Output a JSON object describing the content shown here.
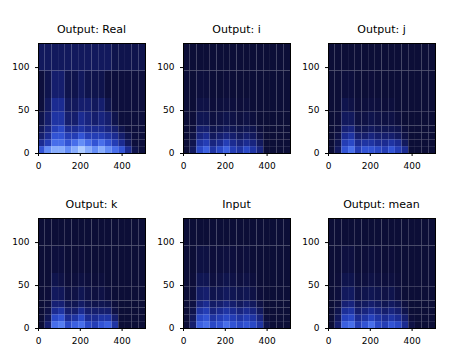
{
  "chart_data": [
    {
      "type": "heatmap",
      "title": "Output: Real",
      "xlim": [
        0,
        512
      ],
      "ylim": [
        0,
        128
      ],
      "xticks": [
        0,
        200,
        400
      ],
      "yticks": [
        0,
        50,
        100
      ],
      "zlim": [
        0,
        1
      ],
      "x_edges": [
        0,
        32,
        64,
        96,
        128,
        160,
        192,
        224,
        256,
        288,
        320,
        352,
        384,
        416,
        448,
        480,
        512
      ],
      "y_edges": [
        0,
        8,
        16,
        24,
        32,
        48,
        64,
        96,
        128
      ],
      "z": [
        [
          0.5,
          0.7,
          0.8,
          0.8,
          0.7,
          0.8,
          0.9,
          0.8,
          0.7,
          0.8,
          0.7,
          0.6,
          0.5,
          0.3,
          0.1,
          0.05
        ],
        [
          0.3,
          0.4,
          0.6,
          0.6,
          0.5,
          0.6,
          0.7,
          0.6,
          0.5,
          0.6,
          0.5,
          0.4,
          0.3,
          0.15,
          0.05,
          0.05
        ],
        [
          0.2,
          0.3,
          0.5,
          0.5,
          0.4,
          0.4,
          0.5,
          0.4,
          0.4,
          0.4,
          0.35,
          0.3,
          0.2,
          0.1,
          0.05,
          0.05
        ],
        [
          0.15,
          0.25,
          0.4,
          0.45,
          0.3,
          0.3,
          0.35,
          0.3,
          0.3,
          0.3,
          0.25,
          0.2,
          0.1,
          0.05,
          0.05,
          0.05
        ],
        [
          0.1,
          0.2,
          0.35,
          0.35,
          0.2,
          0.2,
          0.3,
          0.25,
          0.2,
          0.25,
          0.2,
          0.1,
          0.05,
          0.05,
          0.05,
          0.05
        ],
        [
          0.05,
          0.15,
          0.3,
          0.3,
          0.15,
          0.15,
          0.2,
          0.2,
          0.15,
          0.2,
          0.1,
          0.05,
          0.05,
          0.05,
          0.05,
          0.05
        ],
        [
          0.05,
          0.1,
          0.2,
          0.2,
          0.1,
          0.1,
          0.15,
          0.1,
          0.1,
          0.1,
          0.05,
          0.05,
          0.05,
          0.05,
          0.05,
          0.05
        ],
        [
          0.15,
          0.15,
          0.15,
          0.15,
          0.15,
          0.15,
          0.15,
          0.15,
          0.15,
          0.15,
          0.15,
          0.1,
          0.1,
          0.1,
          0.1,
          0.1
        ]
      ]
    },
    {
      "type": "heatmap",
      "title": "Output: i",
      "xlim": [
        0,
        512
      ],
      "ylim": [
        0,
        128
      ],
      "xticks": [
        0,
        200,
        400
      ],
      "yticks": [
        0,
        50,
        100
      ],
      "zlim": [
        0,
        1
      ],
      "x_edges": [
        0,
        32,
        64,
        96,
        128,
        160,
        192,
        224,
        256,
        288,
        320,
        352,
        384,
        416,
        448,
        480,
        512
      ],
      "y_edges": [
        0,
        8,
        16,
        24,
        32,
        48,
        64,
        96,
        128
      ],
      "z": [
        [
          0.03,
          0.15,
          0.45,
          0.55,
          0.35,
          0.45,
          0.55,
          0.4,
          0.35,
          0.45,
          0.35,
          0.25,
          0.03,
          0.03,
          0.03,
          0.03
        ],
        [
          0.03,
          0.1,
          0.35,
          0.4,
          0.25,
          0.3,
          0.4,
          0.3,
          0.25,
          0.3,
          0.25,
          0.15,
          0.03,
          0.03,
          0.03,
          0.03
        ],
        [
          0.03,
          0.08,
          0.25,
          0.3,
          0.15,
          0.2,
          0.25,
          0.2,
          0.15,
          0.2,
          0.15,
          0.08,
          0.03,
          0.03,
          0.03,
          0.03
        ],
        [
          0.03,
          0.05,
          0.2,
          0.2,
          0.1,
          0.12,
          0.15,
          0.12,
          0.1,
          0.12,
          0.1,
          0.05,
          0.03,
          0.03,
          0.03,
          0.03
        ],
        [
          0.03,
          0.04,
          0.12,
          0.12,
          0.06,
          0.08,
          0.1,
          0.08,
          0.06,
          0.08,
          0.05,
          0.03,
          0.03,
          0.03,
          0.03,
          0.03
        ],
        [
          0.03,
          0.03,
          0.08,
          0.08,
          0.04,
          0.05,
          0.06,
          0.05,
          0.04,
          0.05,
          0.03,
          0.03,
          0.03,
          0.03,
          0.03,
          0.03
        ],
        [
          0.03,
          0.03,
          0.05,
          0.05,
          0.03,
          0.03,
          0.04,
          0.03,
          0.03,
          0.03,
          0.03,
          0.03,
          0.03,
          0.03,
          0.03,
          0.03
        ],
        [
          0.03,
          0.03,
          0.03,
          0.03,
          0.03,
          0.03,
          0.03,
          0.03,
          0.03,
          0.03,
          0.03,
          0.03,
          0.03,
          0.03,
          0.03,
          0.03
        ]
      ]
    },
    {
      "type": "heatmap",
      "title": "Output: j",
      "xlim": [
        0,
        512
      ],
      "ylim": [
        0,
        128
      ],
      "xticks": [
        0,
        200,
        400
      ],
      "yticks": [
        0,
        50,
        100
      ],
      "zlim": [
        0,
        1
      ],
      "x_edges": [
        0,
        32,
        64,
        96,
        128,
        160,
        192,
        224,
        256,
        288,
        320,
        352,
        384,
        416,
        448,
        480,
        512
      ],
      "y_edges": [
        0,
        8,
        16,
        24,
        32,
        48,
        64,
        96,
        128
      ],
      "z": [
        [
          0.03,
          0.15,
          0.5,
          0.6,
          0.4,
          0.5,
          0.5,
          0.45,
          0.4,
          0.5,
          0.4,
          0.3,
          0.03,
          0.03,
          0.03,
          0.03
        ],
        [
          0.03,
          0.1,
          0.4,
          0.45,
          0.3,
          0.35,
          0.35,
          0.3,
          0.3,
          0.35,
          0.3,
          0.15,
          0.03,
          0.03,
          0.03,
          0.03
        ],
        [
          0.03,
          0.08,
          0.3,
          0.35,
          0.2,
          0.2,
          0.25,
          0.2,
          0.2,
          0.2,
          0.15,
          0.08,
          0.03,
          0.03,
          0.03,
          0.03
        ],
        [
          0.03,
          0.05,
          0.22,
          0.25,
          0.12,
          0.12,
          0.15,
          0.12,
          0.12,
          0.12,
          0.1,
          0.05,
          0.03,
          0.03,
          0.03,
          0.03
        ],
        [
          0.03,
          0.04,
          0.15,
          0.15,
          0.07,
          0.08,
          0.1,
          0.08,
          0.07,
          0.08,
          0.05,
          0.03,
          0.03,
          0.03,
          0.03,
          0.03
        ],
        [
          0.03,
          0.03,
          0.1,
          0.08,
          0.04,
          0.05,
          0.06,
          0.05,
          0.04,
          0.05,
          0.03,
          0.03,
          0.03,
          0.03,
          0.03,
          0.03
        ],
        [
          0.03,
          0.03,
          0.05,
          0.05,
          0.03,
          0.03,
          0.04,
          0.03,
          0.03,
          0.03,
          0.03,
          0.03,
          0.03,
          0.03,
          0.03,
          0.03
        ],
        [
          0.03,
          0.03,
          0.03,
          0.03,
          0.03,
          0.03,
          0.03,
          0.03,
          0.03,
          0.03,
          0.03,
          0.03,
          0.03,
          0.03,
          0.03,
          0.03
        ]
      ]
    },
    {
      "type": "heatmap",
      "title": "Output: k",
      "xlim": [
        0,
        512
      ],
      "ylim": [
        0,
        128
      ],
      "xticks": [
        0,
        200,
        400
      ],
      "yticks": [
        0,
        50,
        100
      ],
      "zlim": [
        0,
        1
      ],
      "x_edges": [
        0,
        32,
        64,
        96,
        128,
        160,
        192,
        224,
        256,
        288,
        320,
        352,
        384,
        416,
        448,
        480,
        512
      ],
      "y_edges": [
        0,
        8,
        16,
        24,
        32,
        48,
        64,
        96,
        128
      ],
      "z": [
        [
          0.03,
          0.2,
          0.6,
          0.65,
          0.45,
          0.55,
          0.6,
          0.45,
          0.4,
          0.5,
          0.55,
          0.35,
          0.03,
          0.03,
          0.03,
          0.03
        ],
        [
          0.03,
          0.12,
          0.45,
          0.5,
          0.3,
          0.35,
          0.45,
          0.3,
          0.3,
          0.35,
          0.35,
          0.2,
          0.03,
          0.03,
          0.03,
          0.03
        ],
        [
          0.03,
          0.08,
          0.3,
          0.35,
          0.2,
          0.2,
          0.3,
          0.2,
          0.2,
          0.2,
          0.2,
          0.08,
          0.03,
          0.03,
          0.03,
          0.03
        ],
        [
          0.03,
          0.05,
          0.22,
          0.22,
          0.12,
          0.12,
          0.18,
          0.12,
          0.1,
          0.12,
          0.1,
          0.05,
          0.03,
          0.03,
          0.03,
          0.03
        ],
        [
          0.03,
          0.04,
          0.15,
          0.14,
          0.07,
          0.08,
          0.12,
          0.08,
          0.06,
          0.08,
          0.05,
          0.03,
          0.03,
          0.03,
          0.03,
          0.03
        ],
        [
          0.03,
          0.03,
          0.1,
          0.08,
          0.04,
          0.05,
          0.07,
          0.05,
          0.04,
          0.05,
          0.03,
          0.03,
          0.03,
          0.03,
          0.03,
          0.03
        ],
        [
          0.03,
          0.03,
          0.05,
          0.05,
          0.03,
          0.03,
          0.04,
          0.03,
          0.03,
          0.03,
          0.03,
          0.03,
          0.03,
          0.03,
          0.03,
          0.03
        ],
        [
          0.03,
          0.03,
          0.03,
          0.03,
          0.03,
          0.03,
          0.03,
          0.03,
          0.03,
          0.03,
          0.03,
          0.03,
          0.03,
          0.03,
          0.03,
          0.03
        ]
      ]
    },
    {
      "type": "heatmap",
      "title": "Input",
      "xlim": [
        0,
        512
      ],
      "ylim": [
        0,
        128
      ],
      "xticks": [
        0,
        200,
        400
      ],
      "yticks": [
        0,
        50,
        100
      ],
      "zlim": [
        0,
        1
      ],
      "x_edges": [
        0,
        32,
        64,
        96,
        128,
        160,
        192,
        224,
        256,
        288,
        320,
        352,
        384,
        416,
        448,
        480,
        512
      ],
      "y_edges": [
        0,
        8,
        16,
        24,
        32,
        48,
        64,
        96,
        128
      ],
      "z": [
        [
          0.03,
          0.2,
          0.55,
          0.6,
          0.45,
          0.5,
          0.6,
          0.5,
          0.45,
          0.5,
          0.45,
          0.35,
          0.1,
          0.03,
          0.03,
          0.03
        ],
        [
          0.03,
          0.15,
          0.45,
          0.5,
          0.35,
          0.4,
          0.45,
          0.4,
          0.35,
          0.4,
          0.35,
          0.25,
          0.05,
          0.03,
          0.03,
          0.03
        ],
        [
          0.03,
          0.1,
          0.35,
          0.4,
          0.25,
          0.3,
          0.35,
          0.3,
          0.25,
          0.3,
          0.25,
          0.15,
          0.03,
          0.03,
          0.03,
          0.03
        ],
        [
          0.03,
          0.07,
          0.25,
          0.3,
          0.18,
          0.2,
          0.25,
          0.2,
          0.15,
          0.2,
          0.15,
          0.08,
          0.03,
          0.03,
          0.03,
          0.03
        ],
        [
          0.03,
          0.05,
          0.18,
          0.2,
          0.1,
          0.12,
          0.15,
          0.12,
          0.1,
          0.12,
          0.08,
          0.04,
          0.03,
          0.03,
          0.03,
          0.03
        ],
        [
          0.03,
          0.04,
          0.12,
          0.12,
          0.06,
          0.08,
          0.1,
          0.08,
          0.06,
          0.08,
          0.05,
          0.03,
          0.03,
          0.03,
          0.03,
          0.03
        ],
        [
          0.03,
          0.03,
          0.07,
          0.07,
          0.04,
          0.05,
          0.06,
          0.05,
          0.04,
          0.05,
          0.03,
          0.03,
          0.03,
          0.03,
          0.03,
          0.03
        ],
        [
          0.03,
          0.03,
          0.03,
          0.03,
          0.03,
          0.03,
          0.03,
          0.03,
          0.03,
          0.03,
          0.03,
          0.03,
          0.03,
          0.03,
          0.03,
          0.03
        ]
      ]
    },
    {
      "type": "heatmap",
      "title": "Output: mean",
      "xlim": [
        0,
        512
      ],
      "ylim": [
        0,
        128
      ],
      "xticks": [
        0,
        200,
        400
      ],
      "yticks": [
        0,
        50,
        100
      ],
      "zlim": [
        0,
        1
      ],
      "x_edges": [
        0,
        32,
        64,
        96,
        128,
        160,
        192,
        224,
        256,
        288,
        320,
        352,
        384,
        416,
        448,
        480,
        512
      ],
      "y_edges": [
        0,
        8,
        16,
        24,
        32,
        48,
        64,
        96,
        128
      ],
      "z": [
        [
          0.03,
          0.2,
          0.55,
          0.6,
          0.4,
          0.5,
          0.6,
          0.45,
          0.4,
          0.5,
          0.45,
          0.3,
          0.08,
          0.03,
          0.03,
          0.03
        ],
        [
          0.03,
          0.14,
          0.42,
          0.45,
          0.3,
          0.35,
          0.42,
          0.35,
          0.3,
          0.35,
          0.3,
          0.2,
          0.04,
          0.03,
          0.03,
          0.03
        ],
        [
          0.03,
          0.1,
          0.32,
          0.35,
          0.2,
          0.25,
          0.3,
          0.25,
          0.2,
          0.25,
          0.2,
          0.1,
          0.03,
          0.03,
          0.03,
          0.03
        ],
        [
          0.03,
          0.06,
          0.22,
          0.25,
          0.14,
          0.16,
          0.2,
          0.16,
          0.12,
          0.16,
          0.12,
          0.06,
          0.03,
          0.03,
          0.03,
          0.03
        ],
        [
          0.03,
          0.05,
          0.15,
          0.16,
          0.08,
          0.1,
          0.12,
          0.1,
          0.08,
          0.1,
          0.06,
          0.03,
          0.03,
          0.03,
          0.03,
          0.03
        ],
        [
          0.03,
          0.04,
          0.1,
          0.1,
          0.05,
          0.06,
          0.08,
          0.06,
          0.05,
          0.06,
          0.04,
          0.03,
          0.03,
          0.03,
          0.03,
          0.03
        ],
        [
          0.03,
          0.03,
          0.06,
          0.06,
          0.03,
          0.04,
          0.05,
          0.04,
          0.03,
          0.04,
          0.03,
          0.03,
          0.03,
          0.03,
          0.03,
          0.03
        ],
        [
          0.03,
          0.03,
          0.03,
          0.03,
          0.03,
          0.03,
          0.03,
          0.03,
          0.03,
          0.03,
          0.03,
          0.03,
          0.03,
          0.03,
          0.03,
          0.03
        ]
      ]
    }
  ]
}
